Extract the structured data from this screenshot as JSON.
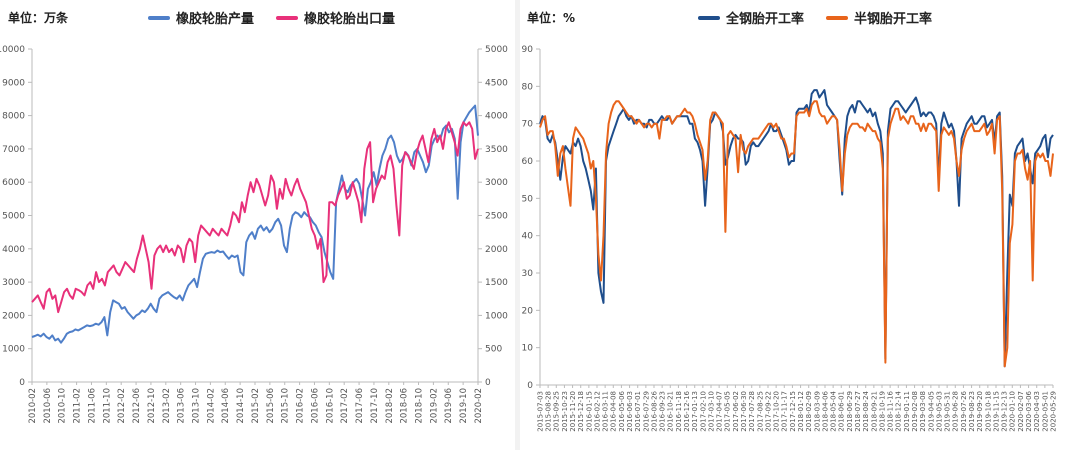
{
  "chart_data": [
    {
      "type": "line",
      "unit_label": "单位：万条",
      "series": [
        {
          "name": "橡胶轮胎产量",
          "axis": "left",
          "color": "#4f7fc9",
          "values": [
            1350,
            1380,
            1420,
            1370,
            1450,
            1350,
            1300,
            1400,
            1250,
            1300,
            1180,
            1300,
            1450,
            1500,
            1520,
            1580,
            1550,
            1600,
            1650,
            1700,
            1680,
            1700,
            1750,
            1720,
            1800,
            1950,
            1400,
            2100,
            2450,
            2400,
            2350,
            2200,
            2250,
            2100,
            2000,
            1900,
            2000,
            2050,
            2150,
            2100,
            2200,
            2350,
            2200,
            2100,
            2500,
            2600,
            2650,
            2700,
            2620,
            2550,
            2500,
            2600,
            2450,
            2700,
            2900,
            3000,
            3100,
            2850,
            3300,
            3700,
            3850,
            3880,
            3900,
            3880,
            3950,
            3900,
            3920,
            3800,
            3700,
            3800,
            3750,
            3800,
            3300,
            3200,
            4200,
            4400,
            4500,
            4300,
            4600,
            4700,
            4550,
            4650,
            4500,
            4600,
            4800,
            4900,
            4700,
            4100,
            3900,
            4600,
            5000,
            5100,
            5050,
            4950,
            5100,
            5000,
            4950,
            4800,
            4700,
            4500,
            4350,
            3900,
            3600,
            3300,
            3100,
            5400,
            5800,
            6200,
            5800,
            5700,
            5900,
            6000,
            6100,
            5950,
            5500,
            5000,
            5800,
            6000,
            6300,
            5900,
            6400,
            6800,
            7000,
            7300,
            7400,
            7200,
            6800,
            6600,
            6700,
            6900,
            6800,
            6500,
            6900,
            7000,
            6800,
            6600,
            6300,
            6500,
            7100,
            7300,
            7400,
            7300,
            7600,
            7700,
            7500,
            7600,
            7300,
            5500,
            7200,
            7800,
            7950,
            8100,
            8200,
            8300,
            7400
          ]
        },
        {
          "name": "橡胶轮胎出口量",
          "axis": "right",
          "color": "#e8317a",
          "values": [
            1200,
            1250,
            1300,
            1200,
            1100,
            1350,
            1400,
            1250,
            1300,
            1050,
            1200,
            1350,
            1400,
            1300,
            1250,
            1400,
            1380,
            1350,
            1300,
            1450,
            1500,
            1400,
            1650,
            1500,
            1550,
            1450,
            1650,
            1700,
            1750,
            1650,
            1600,
            1700,
            1800,
            1750,
            1700,
            1650,
            1850,
            2000,
            2200,
            2000,
            1800,
            1400,
            1900,
            2000,
            2050,
            1950,
            2050,
            1950,
            2000,
            1900,
            2050,
            2000,
            1800,
            2050,
            2150,
            2100,
            1800,
            2200,
            2350,
            2300,
            2250,
            2200,
            2300,
            2250,
            2200,
            2300,
            2250,
            2200,
            2350,
            2550,
            2500,
            2400,
            2700,
            2550,
            2800,
            3000,
            2850,
            3050,
            2950,
            2800,
            2650,
            2800,
            3100,
            3000,
            2600,
            2900,
            2750,
            3050,
            2900,
            2800,
            2950,
            3050,
            2900,
            2800,
            2700,
            2500,
            2300,
            2200,
            2000,
            2150,
            1500,
            1600,
            2700,
            2700,
            2650,
            2800,
            2900,
            3000,
            2750,
            2800,
            3000,
            2850,
            2700,
            2400,
            3200,
            3500,
            3600,
            2700,
            2900,
            3000,
            3100,
            3050,
            3300,
            3400,
            3200,
            2650,
            2200,
            3250,
            3450,
            3400,
            3300,
            3200,
            3450,
            3600,
            3700,
            3500,
            3300,
            3650,
            3800,
            3600,
            3700,
            3500,
            3800,
            3900,
            3750,
            3600,
            3400,
            3800,
            3900,
            3850,
            3900,
            3800,
            3350,
            3500
          ]
        }
      ],
      "x_ticks": [
        "2010-02",
        "2010-06",
        "2010-10",
        "2011-02",
        "2011-06",
        "2011-10",
        "2012-02",
        "2012-06",
        "2012-10",
        "2013-02",
        "2013-06",
        "2013-10",
        "2014-02",
        "2014-06",
        "2014-10",
        "2015-02",
        "2015-06",
        "2015-10",
        "2016-02",
        "2016-06",
        "2016-10",
        "2017-02",
        "2017-06",
        "2017-10",
        "2018-02",
        "2018-06",
        "2018-10",
        "2019-02",
        "2019-06",
        "2019-10",
        "2020-02"
      ],
      "yleft": {
        "min": 0,
        "max": 10000,
        "ticks": [
          "0",
          "1000",
          "2000",
          "3000",
          "4000",
          "5000",
          "6000",
          "7000",
          "8000",
          "9000",
          "10000"
        ]
      },
      "yright": {
        "min": 0,
        "max": 5000,
        "ticks": [
          "0",
          "500",
          "1000",
          "1500",
          "2000",
          "2500",
          "3000",
          "3500",
          "4000",
          "4500",
          "5000"
        ]
      }
    },
    {
      "type": "line",
      "unit_label": "单位：%",
      "series": [
        {
          "name": "全钢胎开工率",
          "color": "#1f4e8c",
          "values": [
            70,
            72,
            71,
            66,
            65,
            67,
            65,
            60,
            55,
            61,
            64,
            63,
            62,
            65,
            64,
            66,
            64,
            60,
            58,
            55,
            52,
            47,
            58,
            30,
            25,
            22,
            60,
            64,
            66,
            68,
            70,
            72,
            73,
            74,
            72,
            71,
            72,
            70,
            71,
            71,
            70,
            70,
            69,
            71,
            71,
            70,
            70,
            71,
            72,
            71,
            71,
            72,
            70,
            71,
            72,
            72,
            72,
            72,
            72,
            70,
            70,
            66,
            65,
            63,
            60,
            48,
            58,
            70,
            71,
            73,
            72,
            71,
            68,
            59,
            61,
            64,
            66,
            67,
            66,
            66,
            65,
            59,
            60,
            64,
            65,
            64,
            64,
            65,
            66,
            67,
            68,
            70,
            68,
            68,
            69,
            67,
            65,
            63,
            59,
            60,
            60,
            73,
            74,
            74,
            74,
            75,
            73,
            78,
            79,
            79,
            77,
            78,
            79,
            75,
            74,
            73,
            72,
            71,
            60,
            51,
            66,
            72,
            74,
            75,
            73,
            76,
            76,
            75,
            74,
            73,
            74,
            72,
            73,
            70,
            68,
            62,
            7,
            68,
            74,
            75,
            76,
            76,
            75,
            74,
            73,
            74,
            75,
            76,
            77,
            75,
            72,
            73,
            72,
            73,
            73,
            72,
            70,
            55,
            70,
            73,
            71,
            69,
            70,
            68,
            60,
            48,
            66,
            68,
            70,
            71,
            72,
            70,
            70,
            71,
            72,
            72,
            69,
            70,
            71,
            65,
            72,
            73,
            56,
            5,
            30,
            51,
            48,
            62,
            64,
            65,
            66,
            60,
            62,
            58,
            54,
            62,
            63,
            64,
            66,
            67,
            61,
            66,
            67
          ]
        },
        {
          "name": "半钢胎开工率",
          "color": "#e8641b",
          "values": [
            69,
            71,
            72,
            67,
            68,
            68,
            64,
            56,
            62,
            64,
            58,
            53,
            48,
            66,
            69,
            68,
            67,
            66,
            64,
            62,
            58,
            60,
            50,
            35,
            28,
            40,
            62,
            70,
            73,
            75,
            76,
            76,
            75,
            74,
            73,
            72,
            72,
            71,
            70,
            71,
            70,
            69,
            70,
            70,
            69,
            70,
            70,
            66,
            71,
            71,
            72,
            72,
            70,
            71,
            72,
            72,
            73,
            74,
            73,
            73,
            72,
            70,
            67,
            65,
            63,
            55,
            60,
            71,
            73,
            73,
            72,
            71,
            70,
            41,
            67,
            68,
            67,
            66,
            57,
            67,
            63,
            62,
            64,
            65,
            66,
            66,
            66,
            67,
            68,
            69,
            70,
            70,
            69,
            70,
            68,
            66,
            66,
            64,
            61,
            62,
            62,
            72,
            73,
            73,
            73,
            74,
            72,
            75,
            76,
            76,
            73,
            72,
            72,
            70,
            71,
            72,
            72,
            71,
            63,
            52,
            62,
            67,
            69,
            70,
            70,
            70,
            69,
            69,
            68,
            70,
            69,
            68,
            68,
            66,
            65,
            58,
            6,
            66,
            70,
            72,
            74,
            74,
            71,
            72,
            71,
            70,
            72,
            72,
            70,
            70,
            68,
            70,
            68,
            70,
            70,
            69,
            68,
            52,
            67,
            69,
            68,
            67,
            68,
            66,
            60,
            56,
            63,
            66,
            68,
            69,
            70,
            68,
            68,
            68,
            69,
            70,
            67,
            68,
            70,
            62,
            71,
            72,
            52,
            5,
            10,
            38,
            43,
            60,
            62,
            62,
            63,
            58,
            55,
            60,
            28,
            60,
            62,
            61,
            62,
            60,
            60,
            56,
            62
          ]
        }
      ],
      "x_ticks": [
        "2015-07-03",
        "2015-08-28",
        "2015-09-25",
        "2015-10-23",
        "2015-11-20",
        "2015-12-18",
        "2016-01-15",
        "2016-02-12",
        "2016-03-11",
        "2016-04-08",
        "2016-05-06",
        "2016-06-03",
        "2016-07-01",
        "2016-07-29",
        "2016-08-26",
        "2016-09-23",
        "2016-10-21",
        "2016-11-18",
        "2016-12-16",
        "2017-01-13",
        "2017-02-10",
        "2017-03-10",
        "2017-04-07",
        "2017-05-05",
        "2017-06-02",
        "2017-06-30",
        "2017-07-28",
        "2017-08-25",
        "2017-09-22",
        "2017-10-20",
        "2017-11-17",
        "2017-12-15",
        "2018-01-12",
        "2018-02-09",
        "2018-03-09",
        "2018-04-06",
        "2018-05-04",
        "2018-06-01",
        "2018-06-29",
        "2018-07-27",
        "2018-08-24",
        "2018-09-21",
        "2018-10-19",
        "2018-11-16",
        "2018-12-14",
        "2019-01-11",
        "2019-02-08",
        "2019-03-08",
        "2019-04-05",
        "2019-05-03",
        "2019-05-31",
        "2019-06-28",
        "2019-07-26",
        "2019-08-23",
        "2019-09-20",
        "2019-10-18",
        "2019-11-15",
        "2019-12-13",
        "2020-01-10",
        "2020-02-07",
        "2020-03-06",
        "2020-04-03",
        "2020-05-01",
        "2020-05-29"
      ],
      "yleft": {
        "min": 0,
        "max": 90,
        "ticks": [
          "0",
          "10",
          "20",
          "30",
          "40",
          "50",
          "60",
          "70",
          "80",
          "90"
        ]
      }
    }
  ]
}
